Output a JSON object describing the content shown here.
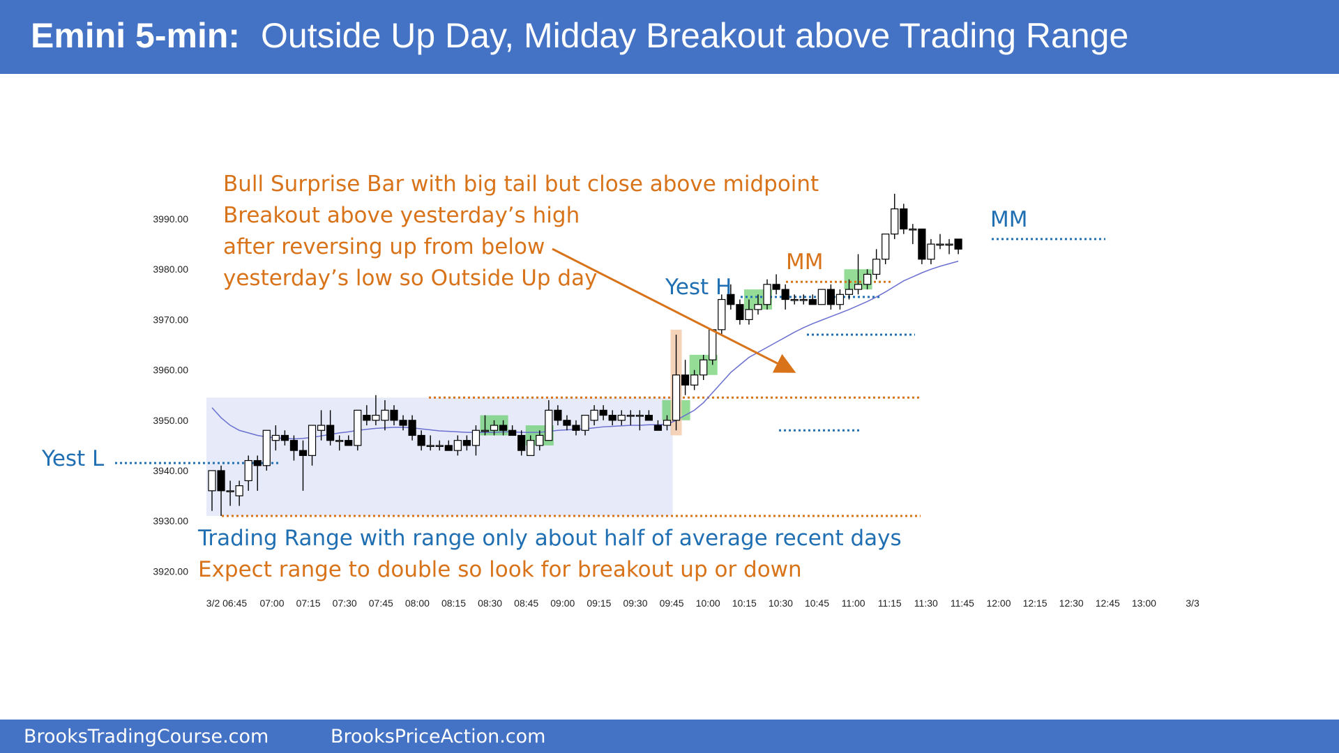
{
  "header": {
    "title_strong": "Emini 5-min:",
    "title_rest": "Outside Up Day, Midday Breakout above Trading Range"
  },
  "footer": {
    "left": "BrooksTradingCourse.com",
    "right": "BrooksPriceAction.com"
  },
  "annotations": {
    "bull_surprise": [
      "Bull Surprise Bar with big tail but close above midpoint",
      "Breakout above yesterday’s high",
      "after reversing up from below",
      "yesterday’s low so Outside Up day"
    ],
    "trading_range_line1": "Trading Range with range only about half of average recent days",
    "trading_range_line2": "Expect range to double so look for breakout up or down",
    "yest_l": "Yest L",
    "yest_h": "Yest H",
    "mm_1": "MM",
    "mm_2": "MM"
  },
  "colors": {
    "header_bg": "#4472C4",
    "bull_candle": "#ffffff",
    "bear_candle": "#000000",
    "ema": "#6A6FD0",
    "orange": "#D8731A",
    "blue": "#1F6FB2",
    "range_fill": "#E2E6F8",
    "green_highlight": "#5CCB5F",
    "surprise_highlight": "#F2C8A8"
  },
  "chart_data": {
    "type": "candlestick",
    "y_ticks": [
      "3990.00",
      "3980.00",
      "3970.00",
      "3960.00",
      "3950.00",
      "3940.00",
      "3930.00",
      "3920.00"
    ],
    "x_ticks": [
      "3/2 06:45",
      "07:00",
      "07:15",
      "07:30",
      "07:45",
      "08:00",
      "08:15",
      "08:30",
      "08:45",
      "09:00",
      "09:15",
      "09:30",
      "09:45",
      "10:00",
      "10:15",
      "10:30",
      "10:45",
      "11:00",
      "11:15",
      "11:30",
      "11:45",
      "12:00",
      "12:15",
      "12:30",
      "12:45",
      "13:00",
      "3/3"
    ],
    "ylim": [
      3920,
      3990
    ],
    "levels": {
      "yesterday_low": 3941.5,
      "yesterday_high": 3974.5,
      "range_top": 3954.5,
      "range_bottom": 3931,
      "mm_1": 3977.5,
      "mm_2": 3986
    },
    "candles": [
      {
        "o": 3936,
        "h": 3940,
        "l": 3932,
        "c": 3940
      },
      {
        "o": 3940,
        "h": 3941,
        "l": 3931,
        "c": 3936
      },
      {
        "o": 3936,
        "h": 3938,
        "l": 3933,
        "c": 3936
      },
      {
        "o": 3935,
        "h": 3938,
        "l": 3933,
        "c": 3937
      },
      {
        "o": 3938,
        "h": 3943,
        "l": 3936,
        "c": 3942
      },
      {
        "o": 3942,
        "h": 3943,
        "l": 3936,
        "c": 3941
      },
      {
        "o": 3941,
        "h": 3948,
        "l": 3940,
        "c": 3948
      },
      {
        "o": 3946,
        "h": 3949,
        "l": 3944,
        "c": 3947
      },
      {
        "o": 3947,
        "h": 3948,
        "l": 3945,
        "c": 3946
      },
      {
        "o": 3946,
        "h": 3947,
        "l": 3942,
        "c": 3944
      },
      {
        "o": 3944,
        "h": 3946,
        "l": 3936,
        "c": 3943
      },
      {
        "o": 3943,
        "h": 3949,
        "l": 3941,
        "c": 3949
      },
      {
        "o": 3948,
        "h": 3952,
        "l": 3946,
        "c": 3949
      },
      {
        "o": 3949,
        "h": 3952,
        "l": 3945,
        "c": 3946
      },
      {
        "o": 3946,
        "h": 3947,
        "l": 3944,
        "c": 3946
      },
      {
        "o": 3946,
        "h": 3947,
        "l": 3945,
        "c": 3945
      },
      {
        "o": 3945,
        "h": 3952,
        "l": 3944,
        "c": 3952
      },
      {
        "o": 3951,
        "h": 3953,
        "l": 3949,
        "c": 3950
      },
      {
        "o": 3950,
        "h": 3955,
        "l": 3949,
        "c": 3951
      },
      {
        "o": 3950,
        "h": 3954,
        "l": 3948,
        "c": 3952
      },
      {
        "o": 3952,
        "h": 3953,
        "l": 3949,
        "c": 3950
      },
      {
        "o": 3950,
        "h": 3951,
        "l": 3948,
        "c": 3949
      },
      {
        "o": 3950,
        "h": 3951,
        "l": 3946,
        "c": 3947
      },
      {
        "o": 3947,
        "h": 3948,
        "l": 3944,
        "c": 3945
      },
      {
        "o": 3945,
        "h": 3947,
        "l": 3944,
        "c": 3945
      },
      {
        "o": 3945,
        "h": 3946,
        "l": 3944,
        "c": 3945
      },
      {
        "o": 3945,
        "h": 3946,
        "l": 3944,
        "c": 3944
      },
      {
        "o": 3944,
        "h": 3947,
        "l": 3943,
        "c": 3946
      },
      {
        "o": 3946,
        "h": 3947,
        "l": 3944,
        "c": 3945
      },
      {
        "o": 3945,
        "h": 3949,
        "l": 3943,
        "c": 3948
      },
      {
        "o": 3948,
        "h": 3951,
        "l": 3947,
        "c": 3948
      },
      {
        "o": 3948,
        "h": 3950,
        "l": 3947,
        "c": 3949
      },
      {
        "o": 3949,
        "h": 3950,
        "l": 3947,
        "c": 3948
      },
      {
        "o": 3948,
        "h": 3949,
        "l": 3947,
        "c": 3947
      },
      {
        "o": 3947,
        "h": 3948,
        "l": 3943,
        "c": 3944
      },
      {
        "o": 3943,
        "h": 3947,
        "l": 3943,
        "c": 3946
      },
      {
        "o": 3945,
        "h": 3948,
        "l": 3944,
        "c": 3947
      },
      {
        "o": 3946,
        "h": 3954,
        "l": 3946,
        "c": 3952
      },
      {
        "o": 3952,
        "h": 3953,
        "l": 3949,
        "c": 3950
      },
      {
        "o": 3950,
        "h": 3951,
        "l": 3948,
        "c": 3949
      },
      {
        "o": 3949,
        "h": 3950,
        "l": 3947,
        "c": 3948
      },
      {
        "o": 3948,
        "h": 3951,
        "l": 3947,
        "c": 3951
      },
      {
        "o": 3950,
        "h": 3953,
        "l": 3949,
        "c": 3952
      },
      {
        "o": 3952,
        "h": 3953,
        "l": 3950,
        "c": 3951
      },
      {
        "o": 3951,
        "h": 3952,
        "l": 3949,
        "c": 3950
      },
      {
        "o": 3950,
        "h": 3952,
        "l": 3949,
        "c": 3951
      },
      {
        "o": 3951,
        "h": 3952,
        "l": 3949,
        "c": 3951
      },
      {
        "o": 3951,
        "h": 3952,
        "l": 3948,
        "c": 3951
      },
      {
        "o": 3951,
        "h": 3952,
        "l": 3950,
        "c": 3950
      },
      {
        "o": 3949,
        "h": 3950,
        "l": 3948,
        "c": 3948
      },
      {
        "o": 3949,
        "h": 3951,
        "l": 3948,
        "c": 3950
      },
      {
        "o": 3950,
        "h": 3967,
        "l": 3948,
        "c": 3959
      },
      {
        "o": 3959,
        "h": 3962,
        "l": 3955,
        "c": 3957
      },
      {
        "o": 3957,
        "h": 3960,
        "l": 3956,
        "c": 3959
      },
      {
        "o": 3959,
        "h": 3963,
        "l": 3958,
        "c": 3962
      },
      {
        "o": 3962,
        "h": 3968,
        "l": 3961,
        "c": 3968
      },
      {
        "o": 3968,
        "h": 3975,
        "l": 3967,
        "c": 3974
      },
      {
        "o": 3975,
        "h": 3977,
        "l": 3972,
        "c": 3973
      },
      {
        "o": 3973,
        "h": 3974,
        "l": 3969,
        "c": 3970
      },
      {
        "o": 3970,
        "h": 3974,
        "l": 3969,
        "c": 3972
      },
      {
        "o": 3972,
        "h": 3975,
        "l": 3971,
        "c": 3973
      },
      {
        "o": 3973,
        "h": 3978,
        "l": 3972,
        "c": 3977
      },
      {
        "o": 3977,
        "h": 3979,
        "l": 3975,
        "c": 3976
      },
      {
        "o": 3976,
        "h": 3977,
        "l": 3972,
        "c": 3974
      },
      {
        "o": 3974,
        "h": 3975,
        "l": 3973,
        "c": 3974
      },
      {
        "o": 3974,
        "h": 3975,
        "l": 3973,
        "c": 3974
      },
      {
        "o": 3974,
        "h": 3975,
        "l": 3973,
        "c": 3973
      },
      {
        "o": 3973,
        "h": 3976,
        "l": 3973,
        "c": 3976
      },
      {
        "o": 3976,
        "h": 3977,
        "l": 3972,
        "c": 3973
      },
      {
        "o": 3973,
        "h": 3976,
        "l": 3972,
        "c": 3975
      },
      {
        "o": 3975,
        "h": 3978,
        "l": 3974,
        "c": 3976
      },
      {
        "o": 3976,
        "h": 3983,
        "l": 3975,
        "c": 3977
      },
      {
        "o": 3977,
        "h": 3980,
        "l": 3976,
        "c": 3979
      },
      {
        "o": 3979,
        "h": 3984,
        "l": 3978,
        "c": 3982
      },
      {
        "o": 3982,
        "h": 3987,
        "l": 3981,
        "c": 3987
      },
      {
        "o": 3987,
        "h": 3995,
        "l": 3986,
        "c": 3992
      },
      {
        "o": 3992,
        "h": 3993,
        "l": 3987,
        "c": 3988
      },
      {
        "o": 3988,
        "h": 3989,
        "l": 3985,
        "c": 3988
      },
      {
        "o": 3988,
        "h": 3988,
        "l": 3981,
        "c": 3982
      },
      {
        "o": 3982,
        "h": 3986,
        "l": 3981,
        "c": 3985
      },
      {
        "o": 3985,
        "h": 3987,
        "l": 3984,
        "c": 3985
      },
      {
        "o": 3985,
        "h": 3986,
        "l": 3983,
        "c": 3985
      },
      {
        "o": 3986,
        "h": 3986,
        "l": 3983,
        "c": 3984
      }
    ],
    "ema": [
      3952.5,
      3950.5,
      3949,
      3948,
      3947.5,
      3947,
      3946.7,
      3946.5,
      3946.4,
      3946.3,
      3946.4,
      3946.6,
      3946.9,
      3947.2,
      3947.5,
      3947.7,
      3948,
      3948.2,
      3948.4,
      3948.5,
      3948.6,
      3948.6,
      3948.5,
      3948.3,
      3948.1,
      3947.9,
      3947.8,
      3947.7,
      3947.6,
      3947.6,
      3947.6,
      3947.6,
      3947.7,
      3947.7,
      3947.6,
      3947.6,
      3947.6,
      3947.8,
      3948,
      3948.1,
      3948.2,
      3948.3,
      3948.5,
      3948.7,
      3948.8,
      3948.9,
      3949,
      3949,
      3949.1,
      3949.1,
      3949.2,
      3950,
      3951,
      3952,
      3953.5,
      3955.5,
      3957.5,
      3959.5,
      3961,
      3962.5,
      3963.5,
      3964.5,
      3965.5,
      3966.5,
      3967.5,
      3968.4,
      3969.2,
      3969.9,
      3970.6,
      3971.3,
      3972,
      3972.8,
      3973.6,
      3974.5,
      3975.5,
      3976.6,
      3977.7,
      3978.5,
      3979.3,
      3980,
      3980.6,
      3981.1,
      3981.6
    ],
    "range_box": {
      "from": 0,
      "to": 50
    },
    "surprise_bar": 51,
    "green_zones": [
      {
        "from": 30,
        "to": 32,
        "lo": 3947,
        "hi": 3951
      },
      {
        "from": 35,
        "to": 37,
        "lo": 3945,
        "hi": 3949
      },
      {
        "from": 50,
        "to": 52,
        "lo": 3950,
        "hi": 3954
      },
      {
        "from": 53,
        "to": 55,
        "lo": 3959,
        "hi": 3963
      },
      {
        "from": 59,
        "to": 61,
        "lo": 3972,
        "hi": 3976
      },
      {
        "from": 70,
        "to": 72,
        "lo": 3976,
        "hi": 3980
      }
    ]
  }
}
